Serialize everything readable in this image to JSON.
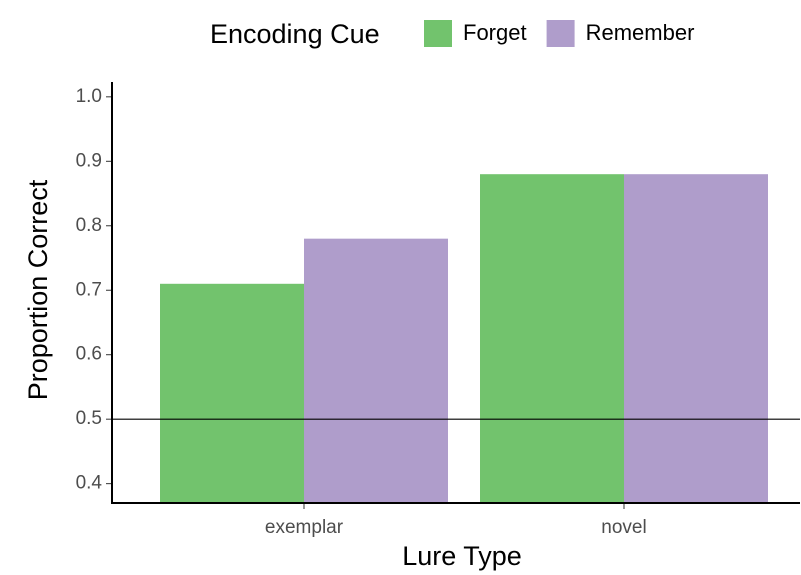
{
  "chart_data": {
    "type": "bar",
    "categories": [
      "exemplar",
      "novel"
    ],
    "series": [
      {
        "name": "Forget",
        "color": "#72c36d",
        "values": [
          0.71,
          0.88
        ]
      },
      {
        "name": "Remember",
        "color": "#af9dcb",
        "values": [
          0.78,
          0.88
        ]
      }
    ],
    "legend_title": "Encoding Cue",
    "legend_position": "top",
    "xlabel": "Lure Type",
    "ylabel": "Proportion Correct",
    "ylim": [
      0.37,
      1.023
    ],
    "yticks": [
      0.4,
      0.5,
      0.6,
      0.7,
      0.8,
      0.9,
      {
        "value": 1,
        "label": "1.0"
      }
    ],
    "reference_line": 0.5,
    "grid": false
  }
}
